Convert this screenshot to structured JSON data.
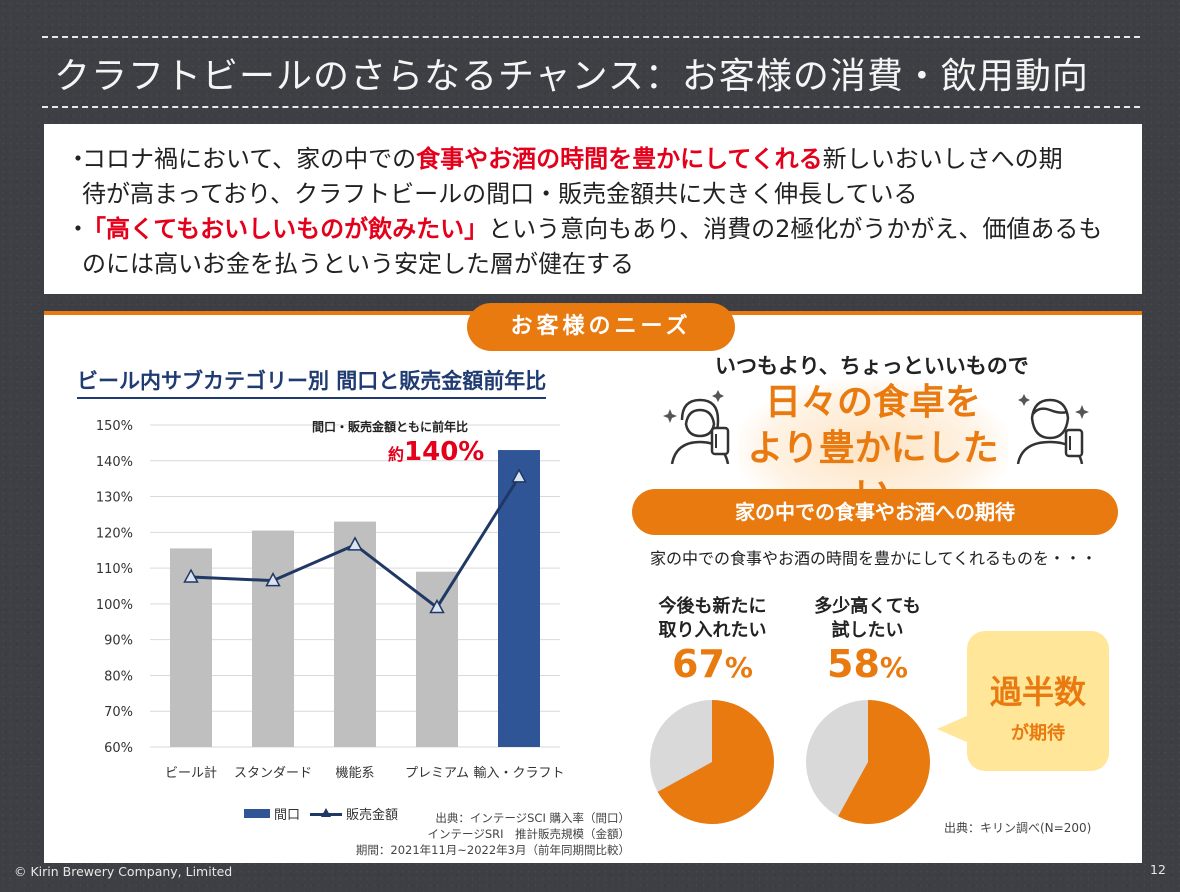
{
  "slide": {
    "title": "クラフトビールのさらなるチャンス：お客様の消費・飲用動向",
    "bullets": [
      {
        "marker": "・",
        "before": "コロナ禍において、家の中での",
        "highlight": "食事やお酒の時間を豊かにしてくれる",
        "after": "新しいおいしさへの期",
        "cont": "待が高まっており、クラフトビールの間口・販売金額共に大きく伸長している"
      },
      {
        "marker": "・",
        "before": "",
        "highlight": "「高くてもおいしいものが飲みたい」",
        "after": "という意向もあり、消費の2極化がうかがえ、価値あるも",
        "cont": "のには高いお金を払うという安定した層が健在する"
      }
    ],
    "needs_label": "お客様のニーズ",
    "footer_copyright": "© Kirin  Brewery Company, Limited",
    "page_number": "12",
    "colors": {
      "accent_orange": "#e87a10",
      "highlight_red": "#e4001b",
      "bar_gray": "#bfbfbf",
      "bar_blue": "#2f5597",
      "line_navy": "#1f3864"
    }
  },
  "chart_data": {
    "type": "bar",
    "title": "ビール内サブカテゴリー別 間口と販売金額前年比",
    "categories": [
      "ビール計",
      "スタンダード",
      "機能系",
      "プレミアム",
      "輸入・クラフト"
    ],
    "series": [
      {
        "name": "間口",
        "type": "bar",
        "values": [
          115.5,
          120.5,
          123,
          109,
          143
        ]
      },
      {
        "name": "販売金額",
        "type": "line",
        "values": [
          107.5,
          106.5,
          116.5,
          99,
          135.5
        ]
      }
    ],
    "ylim": [
      60,
      150
    ],
    "yticks": [
      "60%",
      "70%",
      "80%",
      "90%",
      "100%",
      "110%",
      "120%",
      "130%",
      "140%",
      "150%"
    ],
    "grid": true,
    "legend_position": "bottom",
    "annotation": {
      "small": "間口・販売金額ともに前年比",
      "prefix": "約",
      "value": "140%"
    },
    "source_lines": [
      "出典：インテージSCI 購入率（間口）",
      "インテージSRI　推計販売規模（金額）",
      "期間：2021年11月~2022年3月（前年同期間比較）"
    ]
  },
  "right": {
    "headline_small": "いつもより、ちょっといいもので",
    "headline_big_line1": "日々の食卓を",
    "headline_big_line2": "より豊かにしたい",
    "expect_label": "家の中での食事やお酒への期待",
    "expect_sub": "家の中での食事やお酒の時間を豊かにしてくれるものを・・・",
    "stats": [
      {
        "label1": "今後も新たに",
        "label2": "取り入れたい",
        "num": "67",
        "unit": "%",
        "value": 67
      },
      {
        "label1": "多少高くても",
        "label2": "試したい",
        "num": "58",
        "unit": "%",
        "value": 58
      }
    ],
    "majority_big": "過半数",
    "majority_small": "が期待",
    "source": "出典：キリン調べ(N=200)",
    "pie_colors": {
      "filled": "#e87a10",
      "rest": "#d9d9d9"
    }
  }
}
